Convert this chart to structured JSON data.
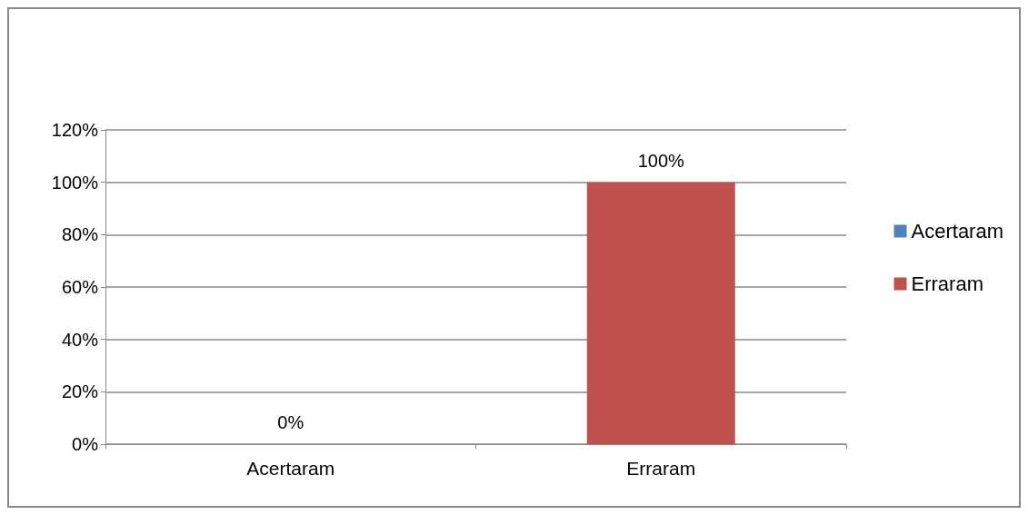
{
  "chart_data": {
    "type": "bar",
    "categories": [
      "Acertaram",
      "Erraram"
    ],
    "series": [
      {
        "name": "Acertaram",
        "color": "#4f81bd",
        "values": [
          0,
          null
        ],
        "value_labels": [
          "0%",
          null
        ]
      },
      {
        "name": "Erraram",
        "color": "#c0504d",
        "values": [
          null,
          100
        ],
        "value_labels": [
          null,
          "100%"
        ]
      }
    ],
    "ylim": [
      0,
      120
    ],
    "yticks": [
      {
        "value": 0,
        "label": "0%"
      },
      {
        "value": 20,
        "label": "20%"
      },
      {
        "value": 40,
        "label": "40%"
      },
      {
        "value": 60,
        "label": "60%"
      },
      {
        "value": 80,
        "label": "80%"
      },
      {
        "value": 100,
        "label": "100%"
      },
      {
        "value": 120,
        "label": "120%"
      }
    ],
    "grid": "y",
    "legend": "right"
  }
}
